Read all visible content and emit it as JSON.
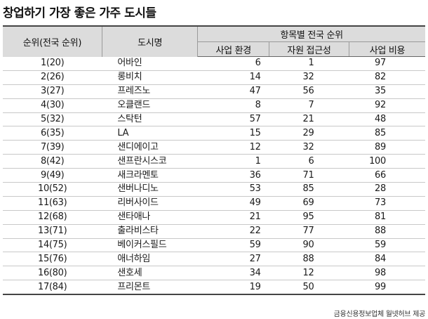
{
  "title": "창업하기 가장 좋은 가주 도시들",
  "header": {
    "rank": "순위(전국 순위)",
    "city": "도시명",
    "group": "항목별 전국 순위",
    "business_env": "사업 환경",
    "resource_access": "자원 접근성",
    "business_cost": "사업 비용"
  },
  "rows": [
    {
      "rank": "1(20)",
      "city": "어바인",
      "env": "6",
      "access": "1",
      "cost": "97"
    },
    {
      "rank": "2(26)",
      "city": "롱비치",
      "env": "14",
      "access": "32",
      "cost": "82"
    },
    {
      "rank": "3(27)",
      "city": "프레즈노",
      "env": "47",
      "access": "56",
      "cost": "35"
    },
    {
      "rank": "4(30)",
      "city": "오클랜드",
      "env": "8",
      "access": "7",
      "cost": "92"
    },
    {
      "rank": "5(32)",
      "city": "스탁턴",
      "env": "57",
      "access": "21",
      "cost": "48"
    },
    {
      "rank": "6(35)",
      "city": "LA",
      "env": "15",
      "access": "29",
      "cost": "85"
    },
    {
      "rank": "7(39)",
      "city": "샌디에이고",
      "env": "12",
      "access": "32",
      "cost": "89"
    },
    {
      "rank": "8(42)",
      "city": "샌프란시스코",
      "env": "1",
      "access": "6",
      "cost": "100"
    },
    {
      "rank": "9(49)",
      "city": "새크라멘토",
      "env": "36",
      "access": "71",
      "cost": "66"
    },
    {
      "rank": "10(52)",
      "city": "샌버나디노",
      "env": "53",
      "access": "85",
      "cost": "28"
    },
    {
      "rank": "11(63)",
      "city": "리버사이드",
      "env": "49",
      "access": "69",
      "cost": "73"
    },
    {
      "rank": "12(68)",
      "city": "샌타애나",
      "env": "21",
      "access": "95",
      "cost": "81"
    },
    {
      "rank": "13(71)",
      "city": "출라비스타",
      "env": "22",
      "access": "77",
      "cost": "88"
    },
    {
      "rank": "14(75)",
      "city": "베이커스필드",
      "env": "59",
      "access": "90",
      "cost": "59"
    },
    {
      "rank": "15(76)",
      "city": "애너하임",
      "env": "27",
      "access": "88",
      "cost": "84"
    },
    {
      "rank": "16(80)",
      "city": "샌호세",
      "env": "34",
      "access": "12",
      "cost": "98"
    },
    {
      "rank": "17(84)",
      "city": "프리몬트",
      "env": "19",
      "access": "50",
      "cost": "99"
    }
  ],
  "source": "금융신용정보업체 월넷허브 제공"
}
